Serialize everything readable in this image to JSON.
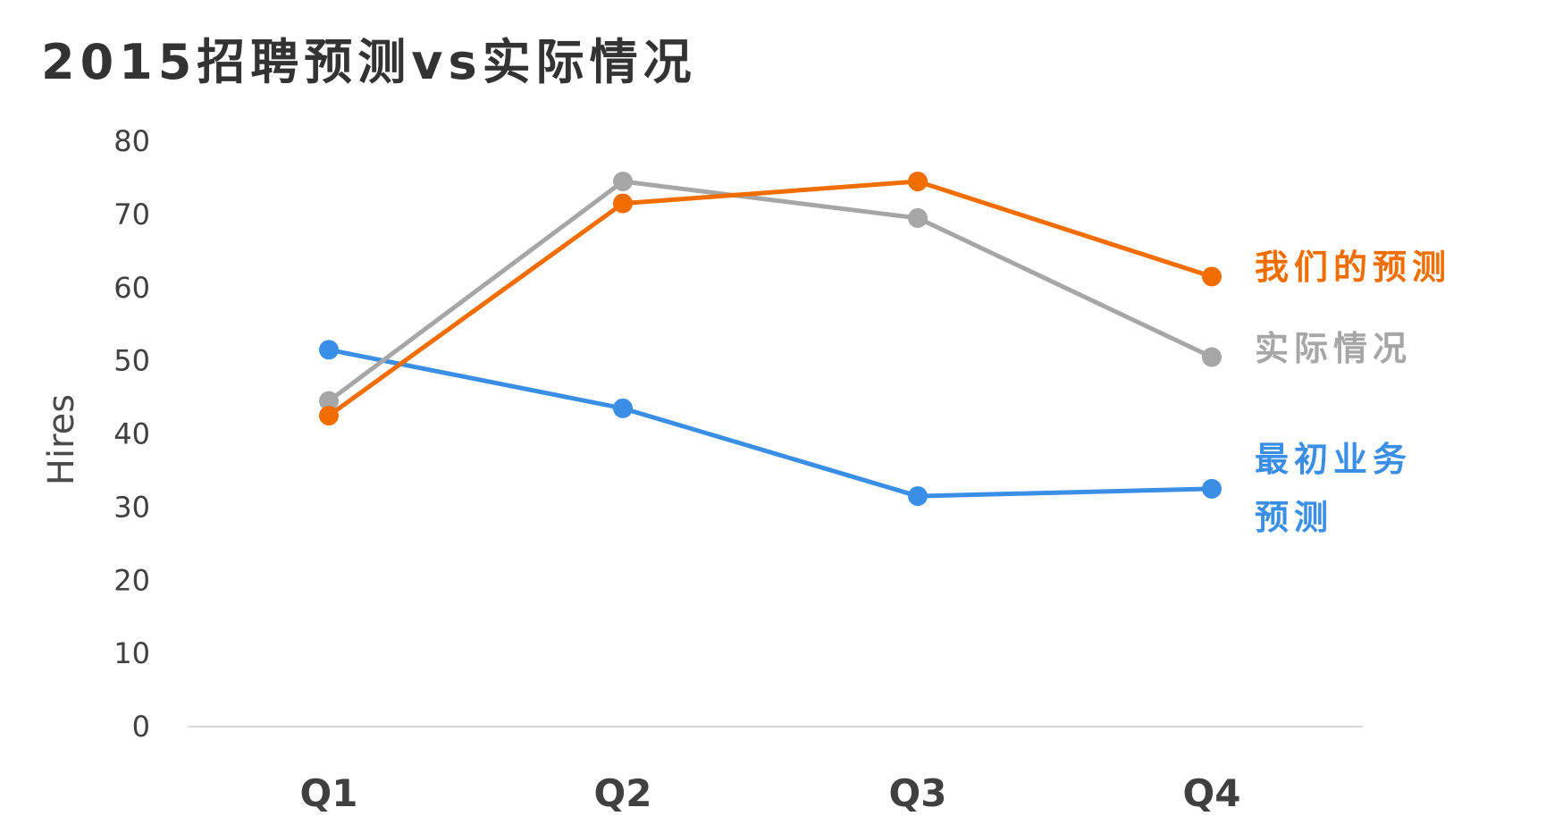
{
  "chart_data": {
    "type": "line",
    "title": "2015招聘预测vs实际情况",
    "ylabel": "Hires",
    "xlabel": "",
    "categories": [
      "Q1",
      "Q2",
      "Q3",
      "Q4"
    ],
    "ylim": [
      0,
      80
    ],
    "yticks": [
      0,
      10,
      20,
      30,
      40,
      50,
      60,
      70,
      80
    ],
    "grid": false,
    "legend": "inline-right",
    "series": [
      {
        "name": "我们的预测",
        "label_lines": [
          "我们的预测"
        ],
        "color": "#f26d00",
        "values": [
          42.5,
          71.5,
          74.5,
          61.5
        ]
      },
      {
        "name": "实际情况",
        "label_lines": [
          "实际情况"
        ],
        "color": "#a6a6a6",
        "values": [
          44.5,
          74.5,
          69.5,
          50.5
        ]
      },
      {
        "name": "最初业务预测",
        "label_lines": [
          "最初业务",
          "预测"
        ],
        "color": "#3a8ee6",
        "values": [
          51.5,
          43.5,
          31.5,
          32.5
        ]
      }
    ]
  }
}
